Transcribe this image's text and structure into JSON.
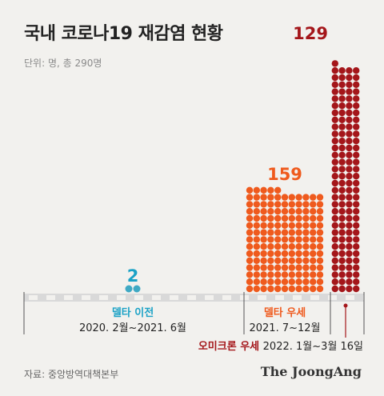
{
  "title": "국내 코로나19 재감염 현황",
  "unit_note": "단위: 명, 총 290명",
  "source": "자료: 중앙방역대책본부",
  "brand": "The JoongAng",
  "chart_data": {
    "type": "bar",
    "title": "국내 코로나19 재감염 현황",
    "categories": [
      {
        "label": "델타 이전",
        "period": "2020. 2월~2021. 6월"
      },
      {
        "label": "델타 우세",
        "period": "2021. 7~12월"
      },
      {
        "label": "오미크론 우세",
        "period": "2022. 1월~3월 16일"
      }
    ],
    "values": [
      2,
      159,
      129
    ],
    "value_labels": [
      "2",
      "159",
      "129"
    ],
    "total": 290,
    "colors": [
      "#3fa9c4",
      "#ef5a1d",
      "#a4161a"
    ],
    "label_colors": [
      "#1ba2c6",
      "#ef5a1d",
      "#a4161a"
    ]
  }
}
